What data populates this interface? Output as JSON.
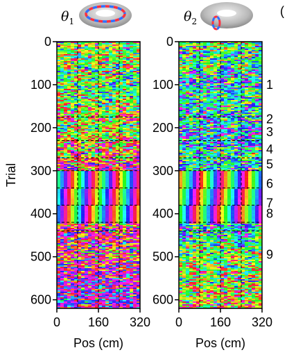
{
  "chart_data": [
    {
      "type": "heatmap",
      "panel": "left",
      "title_symbol": "θ",
      "title_subscript": "1",
      "xlabel": "Pos (cm)",
      "ylabel": "Trial",
      "xlim": [
        0,
        320
      ],
      "ylim": [
        0,
        620
      ],
      "y_inverted": true,
      "xticks": [
        0,
        160,
        320
      ],
      "yticks": [
        0,
        100,
        200,
        300,
        400,
        500,
        600
      ],
      "color_scale": "circular hue (phase)",
      "dashed_vertical_lines_x": [
        80,
        160,
        240
      ],
      "grid": "dashed horizontal lines at epoch boundaries"
    },
    {
      "type": "heatmap",
      "panel": "right",
      "title_symbol": "θ",
      "title_subscript": "2",
      "xlabel": "Pos (cm)",
      "ylabel": "",
      "xlim": [
        0,
        320
      ],
      "ylim": [
        0,
        620
      ],
      "y_inverted": true,
      "xticks": [
        0,
        160,
        320
      ],
      "yticks": [
        0,
        100,
        200,
        300,
        400,
        500,
        600
      ],
      "color_scale": "circular hue (phase)",
      "dashed_vertical_lines_x": [
        80,
        160,
        240
      ],
      "grid": "dashed horizontal lines at epoch boundaries"
    }
  ],
  "epochs": [
    {
      "label": "1",
      "trial": 100
    },
    {
      "label": "2",
      "trial": 180
    },
    {
      "label": "3",
      "trial": 210
    },
    {
      "label": "4",
      "trial": 250
    },
    {
      "label": "5",
      "trial": 285
    },
    {
      "label": "6",
      "trial": 330
    },
    {
      "label": "7",
      "trial": 375
    },
    {
      "label": "8",
      "trial": 400
    },
    {
      "label": "9",
      "trial": 495
    }
  ],
  "epoch_boundaries_trials": [
    175,
    230,
    270,
    300,
    340,
    380,
    420,
    440
  ],
  "partial_glyph": "("
}
